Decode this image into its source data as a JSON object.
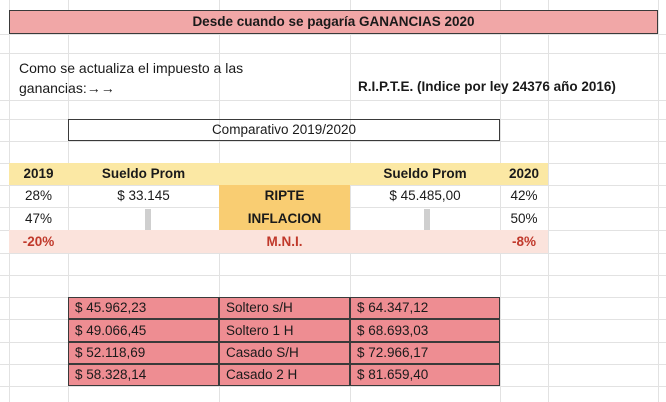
{
  "title": "Desde cuando se pagaría GANANCIAS 2020",
  "note": {
    "line1": "Como se actualiza el impuesto a las",
    "line2": "ganancias:→→"
  },
  "ripte_note": "R.I.P.T.E. (Indice por ley 24376 año 2016)",
  "comparativo": "Comparativo 2019/2020",
  "header": {
    "year_left": "2019",
    "sueldo_left": "Sueldo Prom",
    "sueldo_right": "Sueldo Prom",
    "year_right": "2020"
  },
  "rows": [
    {
      "pct_left": "28%",
      "amount_left": "$ 33.145",
      "label": "RIPTE",
      "amount_right": "$ 45.485,00",
      "pct_right": "42%"
    },
    {
      "pct_left": "47%",
      "amount_left": "",
      "label": "INFLACION",
      "amount_right": "",
      "pct_right": "50%"
    },
    {
      "pct_left": "-20%",
      "amount_left": "",
      "label": "M.N.I.",
      "amount_right": "",
      "pct_right": "-8%"
    }
  ],
  "mni_table": [
    {
      "amount_2019": "$ 45.962,23",
      "category": "Soltero s/H",
      "amount_2020": "$ 64.347,12"
    },
    {
      "amount_2019": "$ 49.066,45",
      "category": "Soltero 1 H",
      "amount_2020": "$ 68.693,03"
    },
    {
      "amount_2019": "$ 52.118,69",
      "category": "Casado S/H",
      "amount_2020": "$ 72.966,17"
    },
    {
      "amount_2019": "$ 58.328,14",
      "category": "Casado 2 H",
      "amount_2020": "$ 81.659,40"
    }
  ],
  "colors": {
    "title_bg": "#f1a7a7",
    "header_bg": "#fbe8a4",
    "label_bg": "#f9cd72",
    "mni_row_bg": "#fbe3dc",
    "negative_text": "#c0392b",
    "table_bg": "#ee8d92"
  }
}
